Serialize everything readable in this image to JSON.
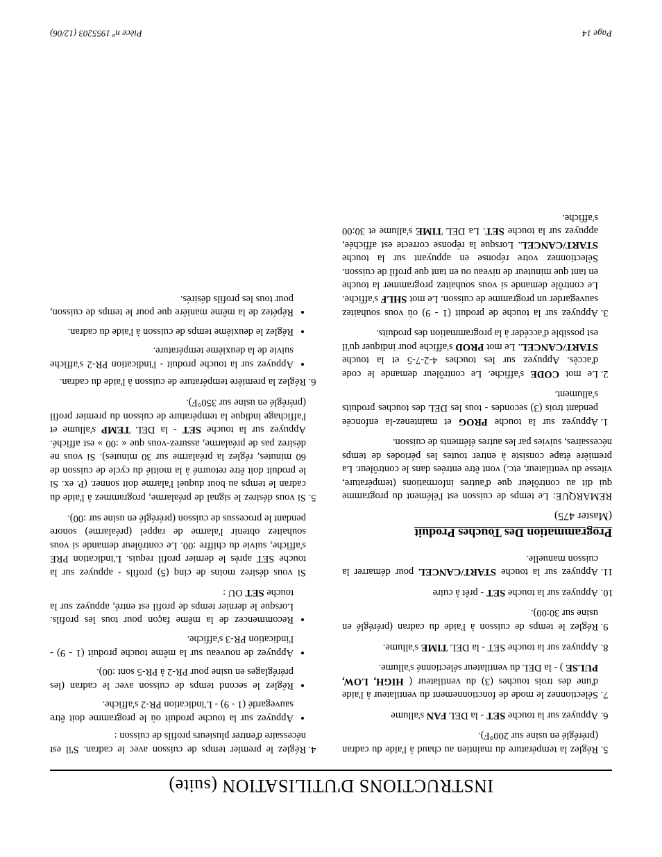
{
  "title": "INSTRUCTIONS D'UTILISATION (suite)",
  "col1": {
    "items5_11": [
      "Réglez la température du maintien au chaud à l'aide du cadran (préréglé en usine sur 200°F).",
      "Appuyez sur la touche <span class='b'>SET</span> - la DEL <span class='b'>FAN</span> s'allume",
      "Sélectionnez le mode de fonctionnement du ventilateur à l'aide d'une des trois touches (3) du ventilateur ( <span class='b'>HIGH, LOW, PULSE</span> ) - la DEL du ventilateur sélectionné s'allume.",
      "Appuyez sur la touche SET - la DEL <span class='b'>TIME</span> s'allume.",
      "Réglez le temps de cuisson à l'aide du cadran (préréglé en usine sur 30:00).",
      "Appuyez sur la touche <span class='b'>SET</span> - prêt à cuire",
      "Appuyez sur la touche <span class='b'>START/CANCEL</span> pour démarrer la cuisson manuelle."
    ],
    "section_title": "Programmation Des Touches Produit",
    "section_sub": "(Master 475)",
    "remark": "REMARQUE: Le temps de cuisson est l'élément du programme qui dit au contrôleur que d'autres informations (température, vitesse du ventilateur, etc.) vont être entrées dans le contrôleur. La première étape consiste à entrer toutes les périodes de temps nécessaires, suivies par les autres éléments de cuisson.",
    "items1_3": [
      "Appuyez sur la touche <span class='b'>PROG</span> et maintenez-la enfoncée pendant trois (3) secondes - tous les DEL des touches produits s'allument.",
      "Le mot <span class='b'>CODE</span> s'affiche. Le contrôleur demande le code d'accès. Appuyez sur les touches 4-2-7-5 et la touche <span class='b'>START/CANCEL</span>. Le mot <span class='b'>PROD</span> s'affiche pour indiquer qu'il est possible d'accéder à la programmation des produits.",
      "Appuyez sur la touche de produit (1 - 9) où vous souhaitez sauvegarder un programme de cuisson. Le mot <span class='b'>SHLF</span> s'affiche. Le contrôle demande si vous souhaitez programmer la touche en tant que minuteur de niveau ou en tant que profil de cuisson. Sélectionnez votre réponse en appuyant sur la touche <span class='b'>START/CANCEL</span>. Lorsque la réponse correcte est affichée, appuyez sur la touche <span class='b'>SET</span>. La DEL <span class='b'>TIME</span> s'allume et 30:00 s'affiche."
    ]
  },
  "col2": {
    "item4": "Réglez le premier temps de cuisson avec le cadran. S'il est nécessaire d'entrer plusieurs profils de cuisson :",
    "sub4": [
      "Appuyez sur la touche produit où le programme doit être sauvegardé (1 - 9) - L'indication PR-2 s'affiche.",
      "Réglez le second temps de cuisson avec le cadran (les préréglages en usine pour PR-2 à PR-5 sont :00).",
      "Appuyez de nouveau sur la même touche produit (1 - 9) - l'indication PR-3 s'affiche.",
      "Recommencez de la même façon pour tous les profils. Lorsque le dernier temps de profil est entré, appuyez sur la touche <span class='b'>SET</span> OU :"
    ],
    "para_after4": "Si vous désirez moins de cinq (5) profils - appuyez sur la touche SET après le dernier profil requis. L'indication PRE s'affiche, suivie du chiffre :00. Le contrôleur demande si vous souhaitez obtenir l'alarme de rappel (préalarme) sonore pendant le processus de cuisson (préréglé en usine sur :00).",
    "item5": "Si vous désirez le signal de préalarme, programmez à l'aide du cadran le temps au bout duquel l'alarme doit sonner. (P. ex. Si le produit doit être retourné à la moitié du cycle de cuisson de 60 minutes, réglez la préalarme sur 30 minutes). Si vous ne désirez pas de préalarme, assurez-vous que « :00 » est affiché. Appuyez sur la touche <span class='b'>SET</span> - la DEL <span class='b'>TEMP</span> s'allume et l'affichage indique la température de cuisson du premier profil (préréglé en usine sur 350°F).",
    "item6": "Réglez la première température de cuisson à l'aide du cadran.",
    "sub6": [
      "Appuyez sur la touche produit - l'indication PR-2 s'affiche suivie de la deuxième température.",
      "Réglez le deuxième temps de cuisson à l'aide du cadran.",
      "Répétez de la même manière que pour le temps de cuisson, pour tous les profils désirés."
    ]
  },
  "footer": {
    "left": "Page 14",
    "right": "Pièce nº 1955203 (12/06)"
  }
}
